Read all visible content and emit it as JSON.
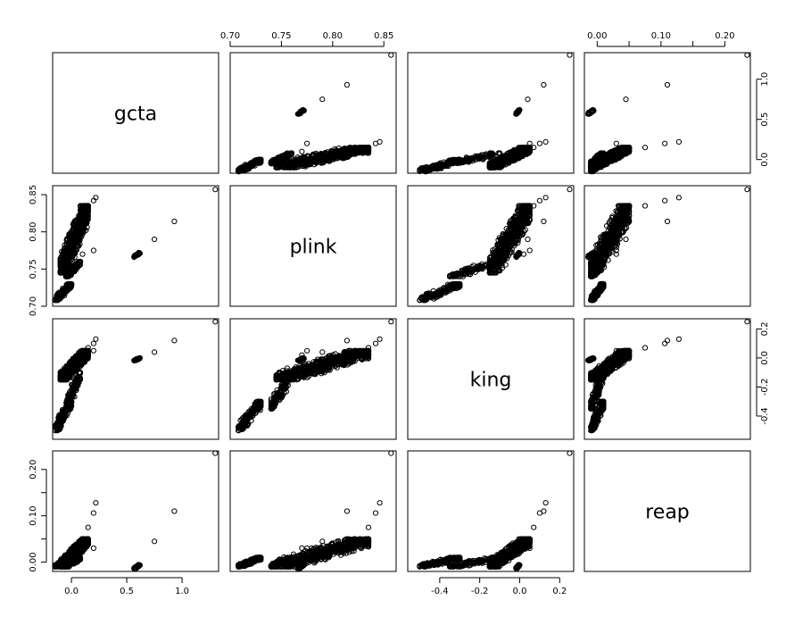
{
  "chart_data": {
    "type": "scatter",
    "variables": [
      "gcta",
      "plink",
      "king",
      "reap"
    ],
    "ranges": {
      "gcta": [
        -0.17,
        1.33
      ],
      "plink": [
        0.7,
        0.862
      ],
      "king": [
        -0.56,
        0.27
      ],
      "reap": [
        -0.02,
        0.24
      ]
    },
    "ticks": {
      "gcta": {
        "values": [
          0.0,
          0.5,
          1.0
        ],
        "labels": [
          "0.0",
          "0.5",
          "1.0"
        ]
      },
      "plink": {
        "values": [
          0.7,
          0.75,
          0.8,
          0.85
        ],
        "labels": [
          "0.70",
          "0.75",
          "0.80",
          "0.85"
        ]
      },
      "king": {
        "values": [
          -0.4,
          -0.2,
          0.0,
          0.2
        ],
        "labels": [
          "-0.4",
          "-0.2",
          "0.0",
          "0.2"
        ]
      },
      "reap": {
        "values": [
          0.0,
          0.05,
          0.1,
          0.15,
          0.2
        ],
        "labels": [
          "0.00",
          "",
          "0.10",
          "",
          "0.20"
        ]
      }
    },
    "axis_sides": {
      "top": [
        1,
        3
      ],
      "bottom": [
        0,
        2
      ],
      "left": [
        1,
        3
      ],
      "right": [
        0,
        2
      ]
    },
    "clusters": [
      {
        "g": [
          -0.1,
          0.15
        ],
        "p": [
          0.745,
          0.835
        ],
        "k": [
          -0.15,
          0.05
        ],
        "r": [
          -0.01,
          0.05
        ],
        "n": 600
      },
      {
        "g": [
          -0.15,
          0.0
        ],
        "p": [
          0.708,
          0.73
        ],
        "k": [
          -0.5,
          -0.3
        ],
        "r": [
          -0.01,
          0.01
        ],
        "n": 150
      },
      {
        "g": [
          -0.05,
          0.08
        ],
        "p": [
          0.74,
          0.76
        ],
        "k": [
          -0.35,
          -0.1
        ],
        "r": [
          -0.01,
          0.01
        ],
        "n": 120
      },
      {
        "g": [
          0.56,
          0.62
        ],
        "p": [
          0.766,
          0.772
        ],
        "k": [
          -0.02,
          0.0
        ],
        "r": [
          -0.015,
          -0.005
        ],
        "n": 30
      }
    ],
    "outliers": [
      {
        "g": 1.3,
        "p": 0.857,
        "k": 0.25,
        "r": 0.235
      },
      {
        "g": 0.93,
        "p": 0.814,
        "k": 0.12,
        "r": 0.11
      },
      {
        "g": 0.75,
        "p": 0.79,
        "k": 0.04,
        "r": 0.045
      },
      {
        "g": 0.22,
        "p": 0.846,
        "k": 0.13,
        "r": 0.128
      },
      {
        "g": 0.2,
        "p": 0.842,
        "k": 0.1,
        "r": 0.106
      },
      {
        "g": 0.2,
        "p": 0.775,
        "k": 0.05,
        "r": 0.03
      },
      {
        "g": 0.15,
        "p": 0.835,
        "k": 0.07,
        "r": 0.075
      },
      {
        "g": 0.1,
        "p": 0.77,
        "k": 0.02,
        "r": 0.03
      }
    ]
  }
}
